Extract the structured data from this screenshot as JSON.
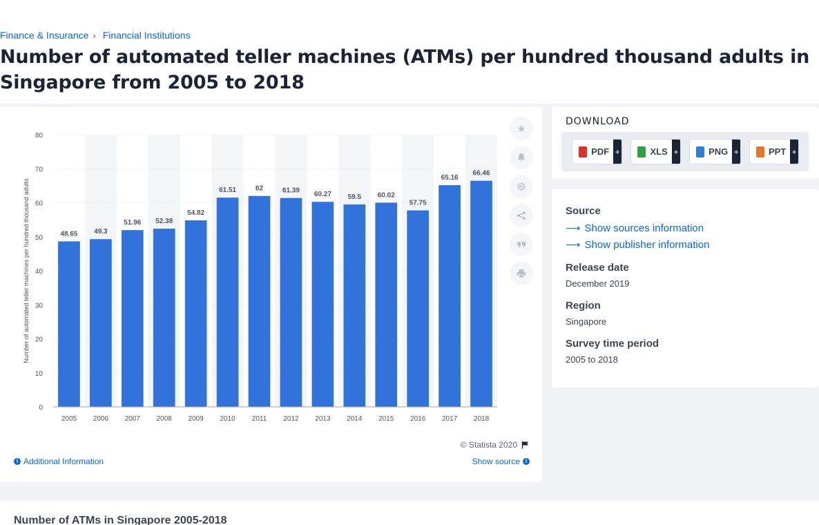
{
  "breadcrumb": {
    "items": [
      "Finance & Insurance",
      "Financial Institutions"
    ]
  },
  "page": {
    "title": "Number of automated teller machines (ATMs) per hundred thousand adults in Singapore from 2005 to 2018"
  },
  "chart_data": {
    "type": "bar",
    "title": "",
    "xlabel": "",
    "ylabel": "Number of automated teller machines per hundred thousand adults",
    "ylim": [
      0,
      80
    ],
    "yticks": [
      0,
      10,
      20,
      30,
      40,
      50,
      60,
      70,
      80
    ],
    "grid": true,
    "categories": [
      "2005",
      "2006",
      "2007",
      "2008",
      "2009",
      "2010",
      "2011",
      "2012",
      "2013",
      "2014",
      "2015",
      "2016",
      "2017",
      "2018"
    ],
    "values": [
      48.65,
      49.3,
      51.96,
      52.38,
      54.82,
      61.51,
      62,
      61.39,
      60.27,
      59.5,
      60.02,
      57.75,
      65.16,
      66.46
    ],
    "color": "#3172db"
  },
  "chart_footer": {
    "credit": "© Statista 2020",
    "additional_info": "Additional Information",
    "show_source": "Show source"
  },
  "tools": [
    "star-icon",
    "bell-icon",
    "gear-icon",
    "share-icon",
    "quote-icon",
    "print-icon"
  ],
  "download": {
    "title": "DOWNLOAD",
    "buttons": [
      {
        "label": "PDF",
        "color": "#d9342b"
      },
      {
        "label": "XLS",
        "color": "#2f9e44"
      },
      {
        "label": "PNG",
        "color": "#2f7fd6"
      },
      {
        "label": "PPT",
        "color": "#e8762b"
      }
    ]
  },
  "source_panel": {
    "source_heading": "Source",
    "show_sources": "Show sources information",
    "show_publisher": "Show publisher information",
    "release_heading": "Release date",
    "release_value": "December 2019",
    "region_heading": "Region",
    "region_value": "Singapore",
    "period_heading": "Survey time period",
    "period_value": "2005 to 2018"
  },
  "related": {
    "title": "Number of ATMs in Singapore 2005-2018"
  }
}
